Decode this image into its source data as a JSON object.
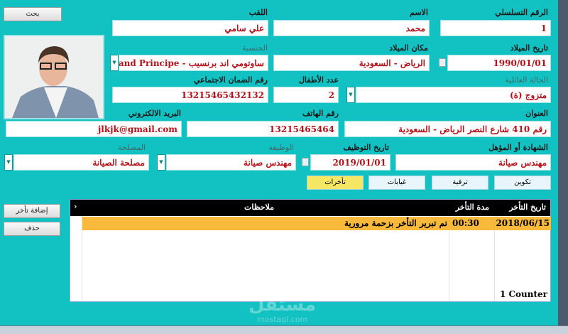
{
  "search_button": "بحث",
  "fields": {
    "serial": {
      "label": "الرقم التسلسلي",
      "value": "1"
    },
    "first_name": {
      "label": "الاسم",
      "value": "محمد"
    },
    "surname": {
      "label": "اللقب",
      "value": "علي سامي"
    },
    "birth_date": {
      "label": "تاريخ الميلاد",
      "value": "1990/01/01"
    },
    "birth_place": {
      "label": "مكان الميلاد",
      "value": "الرياض - السعودية"
    },
    "nationality": {
      "label": "الجنسية",
      "value": "ساوتومي اند برنسيب - Sao Tome and Principe"
    },
    "marital_status": {
      "label": "الحالة العائلية",
      "value": "متزوج (ة)"
    },
    "children": {
      "label": "عدد الأطفال",
      "value": "2"
    },
    "social_security": {
      "label": "رقم الضمان الاجتماعي",
      "value": "13215465432132"
    },
    "address": {
      "label": "العنوان",
      "value": "رقم 410 شارع النصر الرياض - السعودية"
    },
    "phone": {
      "label": "رقم الهاتف",
      "value": "13215465464"
    },
    "email": {
      "label": "البريد الالكتروني",
      "value": "jlkjk@gmail.com"
    },
    "qualification": {
      "label": "الشهادة أو المؤهل",
      "value": "مهندس صيانة"
    },
    "hire_date": {
      "label": "تاريخ التوظيف",
      "value": "2019/01/01"
    },
    "job": {
      "label": "الوظيفة",
      "value": "مهندس صيانة"
    },
    "department": {
      "label": "المصلحة",
      "value": "مصلحة الصيانة"
    }
  },
  "tabs": [
    {
      "label": "تكوين"
    },
    {
      "label": "ترقية"
    },
    {
      "label": "غيابات"
    },
    {
      "label": "تأخرات",
      "active": true
    }
  ],
  "side_buttons": {
    "add": "إضافة تأخر",
    "delete": "حذف"
  },
  "grid": {
    "columns": [
      "تاريخ التأخر",
      "مدة التأخر",
      "ملاحظات"
    ],
    "rows": [
      {
        "date": "2018/06/15",
        "duration": "00:30",
        "notes": "تم تبرير التأخر بزحمة مرورية"
      }
    ],
    "counter_label": "Counter",
    "counter_value": "1"
  },
  "watermark": {
    "text": "مستقل",
    "url": "mostaql.com"
  },
  "colors": {
    "background": "#12c1c1",
    "value_text": "#b3121a",
    "selected_row": "#f9b93a",
    "active_tab": "#f5e663"
  }
}
